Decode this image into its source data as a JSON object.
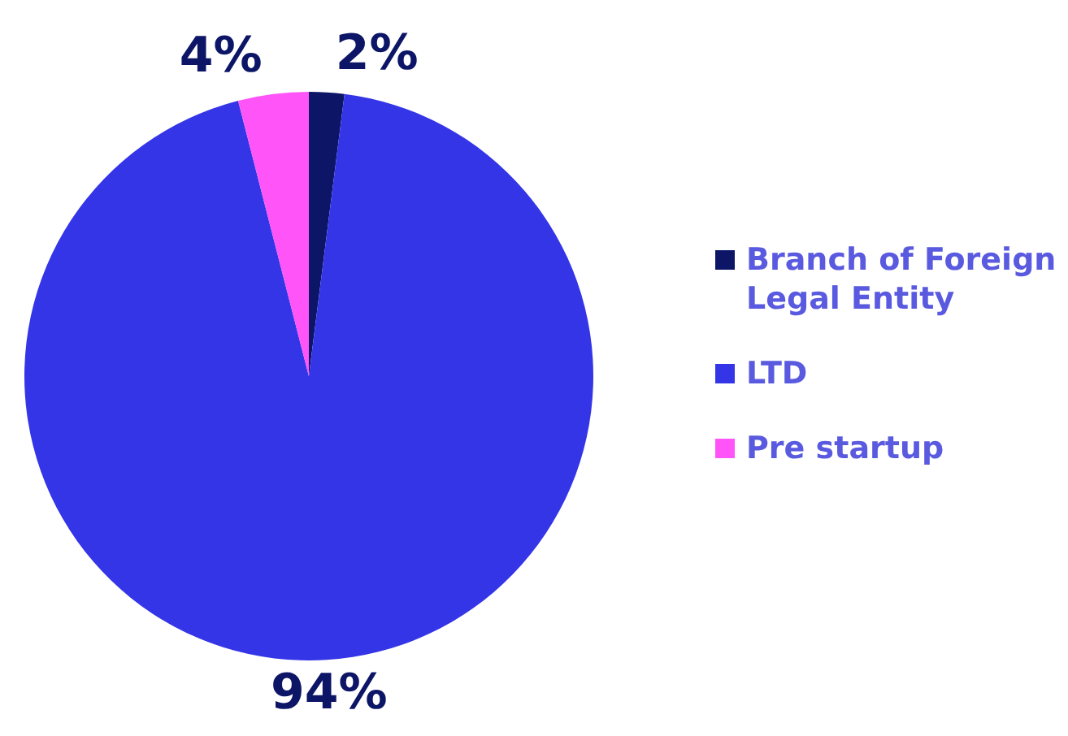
{
  "chart_data": {
    "type": "pie",
    "categories": [
      "Branch of Foreign Legal Entity",
      "LTD",
      "Pre startup"
    ],
    "values": [
      2,
      94,
      4
    ],
    "colors": [
      "#0c1566",
      "#3535e8",
      "#ff55f8"
    ],
    "value_labels": [
      "2%",
      "94%",
      "4%"
    ],
    "legend": "right"
  }
}
